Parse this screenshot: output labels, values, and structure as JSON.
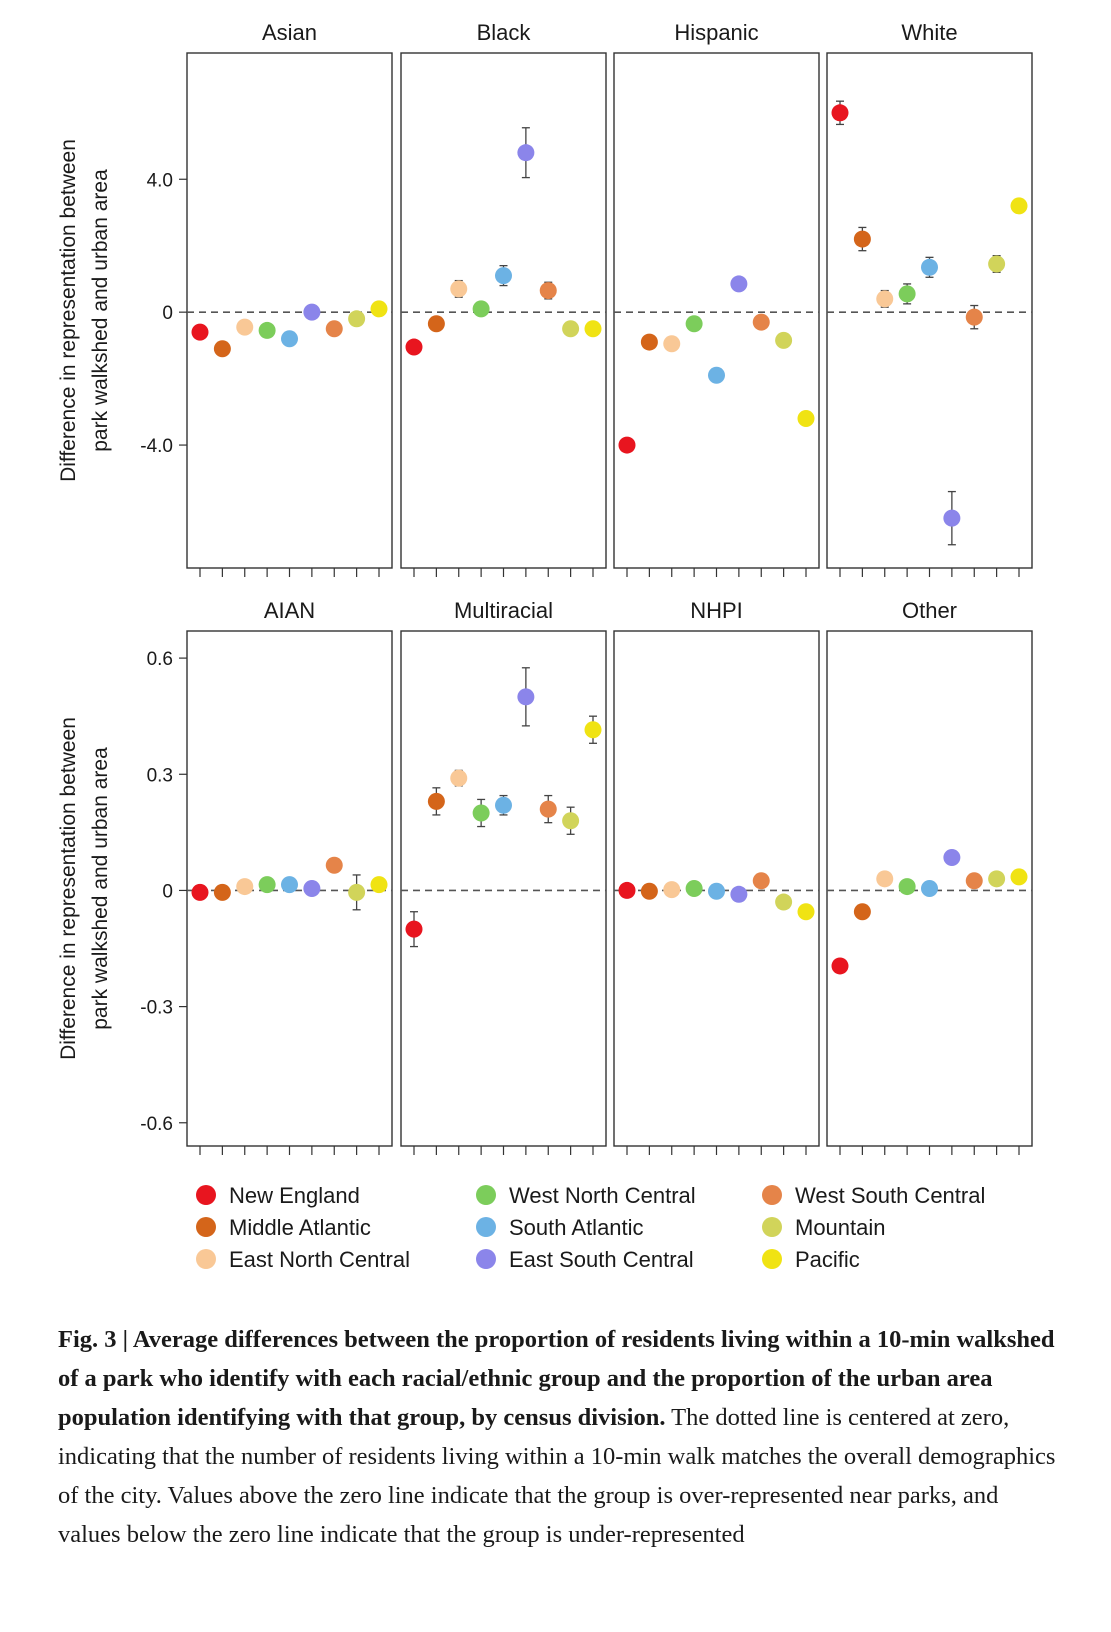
{
  "chart_data": {
    "type": "scatter",
    "description_type": "faceted dot plot with error bars",
    "y_axis_title": "Difference in representation between park walkshed and urban area",
    "y_axis_title_lines": [
      "Difference in representation between",
      "park walkshed and urban area"
    ],
    "categories": [
      "New England",
      "Middle Atlantic",
      "East North Central",
      "West North Central",
      "South Atlantic",
      "East South Central",
      "West South Central",
      "Mountain",
      "Pacific"
    ],
    "colors": [
      "#e8151f",
      "#d4651a",
      "#f9c896",
      "#7ccd5b",
      "#6cb2e4",
      "#8b85ea",
      "#e58449",
      "#d1d45a",
      "#f0e313"
    ],
    "rows": [
      {
        "ylim": [
          -7.7,
          7.8
        ],
        "yticks": [
          4.0,
          0,
          -4.0
        ],
        "ytick_labels": [
          "4.0",
          "0",
          "-4.0"
        ],
        "panels": [
          {
            "title": "Asian",
            "values": [
              -0.6,
              -1.1,
              -0.45,
              -0.55,
              -0.8,
              0.0,
              -0.5,
              -0.2,
              0.1
            ],
            "errors": [
              0,
              0,
              0,
              0,
              0,
              0,
              0,
              0,
              0
            ]
          },
          {
            "title": "Black",
            "values": [
              -1.05,
              -0.35,
              0.7,
              0.1,
              1.1,
              4.8,
              0.65,
              -0.5,
              -0.5
            ],
            "errors": [
              0,
              0.15,
              0.25,
              0.15,
              0.3,
              0.75,
              0.25,
              0,
              0
            ]
          },
          {
            "title": "Hispanic",
            "values": [
              -4.0,
              -0.9,
              -0.95,
              -0.35,
              -1.9,
              0.85,
              -0.3,
              -0.85,
              -3.2
            ],
            "errors": [
              0,
              0,
              0,
              0,
              0,
              0,
              0.2,
              0.2,
              0
            ]
          },
          {
            "title": "White",
            "values": [
              6.0,
              2.2,
              0.4,
              0.55,
              1.35,
              -6.2,
              -0.15,
              1.45,
              3.2
            ],
            "errors": [
              0.35,
              0.35,
              0.25,
              0.3,
              0.3,
              0.8,
              0.35,
              0.25,
              0.2
            ]
          }
        ]
      },
      {
        "ylim": [
          -0.66,
          0.67
        ],
        "yticks": [
          0.6,
          0.3,
          0,
          -0.3,
          -0.6
        ],
        "ytick_labels": [
          "0.6",
          "0.3",
          "0",
          "-0.3",
          "-0.6"
        ],
        "panels": [
          {
            "title": "AIAN",
            "values": [
              -0.005,
              -0.005,
              0.01,
              0.015,
              0.015,
              0.005,
              0.065,
              -0.005,
              0.015
            ],
            "errors": [
              0,
              0,
              0,
              0,
              0,
              0,
              0.015,
              0.045,
              0
            ]
          },
          {
            "title": "Multiracial",
            "values": [
              -0.1,
              0.23,
              0.29,
              0.2,
              0.22,
              0.5,
              0.21,
              0.18,
              0.415
            ],
            "errors": [
              0.045,
              0.035,
              0.02,
              0.035,
              0.025,
              0.075,
              0.035,
              0.035,
              0.035
            ]
          },
          {
            "title": "NHPI",
            "values": [
              0.0,
              -0.002,
              0.002,
              0.005,
              -0.002,
              -0.01,
              0.025,
              -0.03,
              -0.055
            ],
            "errors": [
              0,
              0,
              0,
              0,
              0,
              0,
              0,
              0,
              0
            ]
          },
          {
            "title": "Other",
            "values": [
              -0.195,
              -0.055,
              0.03,
              0.01,
              0.005,
              0.085,
              0.025,
              0.03,
              0.035
            ],
            "errors": [
              0.015,
              0,
              0,
              0,
              0,
              0.015,
              0,
              0,
              0
            ]
          }
        ]
      }
    ],
    "legend": {
      "position": "bottom",
      "columns": [
        [
          "New England",
          "Middle Atlantic",
          "East North Central"
        ],
        [
          "West North Central",
          "South Atlantic",
          "East South Central"
        ],
        [
          "West South Central",
          "Mountain",
          "Pacific"
        ]
      ]
    },
    "reference_line": {
      "y": 0,
      "style": "dashed"
    }
  },
  "caption": {
    "label": "Fig. 3 | ",
    "bold": "Average differences between the proportion of residents living within a 10-min walkshed of a park who identify with each racial/ethnic group and the proportion of the urban area population identifying with that group, by census division.",
    "text": " The dotted line is centered at zero, indicating that the number of residents living within a 10-min walk matches the overall demographics of the city. Values above the zero line indicate that the group is over-represented near parks, and values below the zero line indicate that the group is under-represented"
  }
}
